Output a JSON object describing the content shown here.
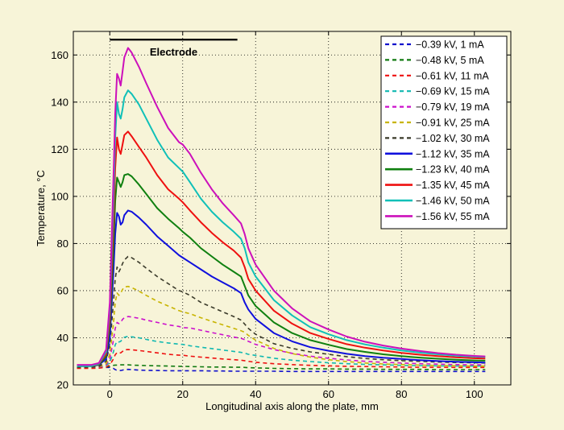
{
  "chart_data": {
    "type": "line",
    "title": "",
    "xlabel": "Longitudinal axis along the plate, mm",
    "ylabel": "Temperature, °C",
    "xlim": [
      -10,
      110
    ],
    "ylim": [
      20,
      170
    ],
    "xticks": [
      0,
      20,
      40,
      60,
      80,
      100
    ],
    "yticks": [
      20,
      40,
      60,
      80,
      100,
      120,
      140,
      160
    ],
    "grid": true,
    "legend_position": "top-right",
    "annotation": {
      "text": "Electrode",
      "x_start": 0,
      "x_end": 35,
      "y": 166.5
    },
    "x": [
      -9,
      -7,
      -5,
      -3,
      -1,
      0,
      1,
      1.5,
      2,
      2.5,
      3,
      3.5,
      4,
      5,
      6,
      8,
      10,
      13,
      16,
      19,
      20,
      22,
      25,
      28,
      31,
      34,
      36,
      37,
      38,
      40,
      45,
      50,
      55,
      60,
      65,
      70,
      75,
      80,
      85,
      90,
      95,
      100,
      103
    ],
    "series": [
      {
        "name": "−0.39 kV, 1 mA",
        "color": "#1010cc",
        "dash": "dashed",
        "values": [
          27.5,
          27.5,
          27.5,
          27.5,
          27.4,
          27.4,
          27.0,
          26.5,
          26.2,
          26.0,
          26.1,
          26.3,
          26.5,
          26.6,
          26.5,
          26.3,
          26.2,
          26.1,
          26.0,
          26.0,
          26.0,
          26.0,
          26.0,
          25.9,
          25.9,
          25.8,
          25.8,
          25.8,
          25.8,
          25.8,
          25.8,
          25.7,
          25.7,
          25.7,
          25.7,
          25.7,
          25.7,
          25.7,
          25.7,
          25.7,
          25.7,
          25.7,
          25.7
        ]
      },
      {
        "name": "−0.48 kV, 5 mA",
        "color": "#107a10",
        "dash": "dashed",
        "values": [
          27.5,
          27.5,
          27.5,
          27.5,
          27.6,
          27.9,
          28.3,
          28.4,
          28.4,
          28.4,
          28.5,
          28.5,
          28.5,
          28.5,
          28.4,
          28.3,
          28.2,
          28.1,
          28.0,
          27.9,
          27.9,
          27.8,
          27.7,
          27.6,
          27.6,
          27.5,
          27.5,
          27.4,
          27.3,
          27.2,
          27.0,
          26.9,
          26.8,
          26.8,
          26.7,
          26.7,
          26.6,
          26.6,
          26.6,
          26.5,
          26.5,
          26.5,
          26.5
        ]
      },
      {
        "name": "−0.61 kV, 11 mA",
        "color": "#ee1010",
        "dash": "dashed",
        "values": [
          27.0,
          27.0,
          27.0,
          27.1,
          27.5,
          28.5,
          31.0,
          32.8,
          33.7,
          33.5,
          33.6,
          34.2,
          34.9,
          35.0,
          34.9,
          34.6,
          34.2,
          33.6,
          33.0,
          32.6,
          32.6,
          32.2,
          31.8,
          31.4,
          31.0,
          30.7,
          30.5,
          30.3,
          30.0,
          29.6,
          29.0,
          28.6,
          28.3,
          28.1,
          27.9,
          27.8,
          27.7,
          27.6,
          27.5,
          27.5,
          27.4,
          27.4,
          27.4
        ]
      },
      {
        "name": "−0.69 kV, 15 mA",
        "color": "#10b8b0",
        "dash": "dashed",
        "values": [
          27.5,
          27.5,
          27.5,
          27.6,
          28.2,
          29.5,
          34.0,
          37.0,
          38.5,
          38.2,
          38.5,
          39.5,
          40.2,
          40.6,
          40.4,
          40.0,
          39.3,
          38.4,
          37.8,
          37.3,
          37.2,
          36.6,
          36.0,
          35.4,
          34.8,
          34.2,
          33.8,
          33.5,
          33.0,
          32.5,
          31.3,
          30.5,
          29.9,
          29.4,
          29.0,
          28.7,
          28.5,
          28.3,
          28.2,
          28.1,
          28.0,
          28.0,
          28.0
        ]
      },
      {
        "name": "−0.79 kV, 19 mA",
        "color": "#cc10cc",
        "dash": "dashed",
        "values": [
          27.5,
          27.5,
          27.5,
          27.6,
          28.5,
          31.0,
          39.0,
          44.0,
          46.5,
          46.0,
          46.5,
          47.8,
          48.5,
          49.0,
          48.8,
          48.3,
          47.5,
          46.5,
          45.5,
          44.8,
          44.3,
          44.2,
          43.2,
          42.2,
          41.3,
          40.3,
          39.8,
          39.2,
          38.5,
          37.2,
          35.0,
          33.4,
          32.2,
          31.3,
          30.6,
          30.0,
          29.6,
          29.3,
          29.0,
          28.8,
          28.6,
          28.5,
          28.5
        ]
      },
      {
        "name": "−0.91 kV, 25 mA",
        "color": "#c8b400",
        "dash": "dashed",
        "values": [
          27.5,
          27.5,
          27.5,
          27.7,
          29.0,
          33.0,
          46.0,
          55.0,
          59.0,
          58.0,
          59.0,
          60.5,
          61.5,
          61.8,
          61.3,
          59.8,
          58.0,
          55.5,
          53.5,
          51.5,
          51.0,
          50.2,
          48.5,
          47.0,
          45.5,
          44.0,
          43.0,
          42.3,
          41.0,
          39.0,
          35.5,
          33.3,
          31.8,
          30.7,
          29.9,
          29.3,
          28.9,
          28.6,
          28.4,
          28.2,
          28.1,
          28.0,
          28.0
        ]
      },
      {
        "name": "−1.02 kV, 30 mA",
        "color": "#3a3a2a",
        "dash": "dashed",
        "values": [
          27.5,
          27.5,
          27.5,
          27.8,
          30.0,
          37.0,
          55.0,
          65.0,
          70.0,
          68.0,
          69.5,
          71.5,
          73.0,
          74.5,
          74.0,
          72.0,
          69.5,
          66.0,
          63.0,
          60.0,
          59.5,
          58.0,
          55.0,
          53.0,
          51.0,
          49.0,
          47.5,
          45.8,
          44.0,
          41.5,
          37.5,
          35.5,
          34.0,
          33.0,
          32.0,
          31.2,
          30.7,
          30.3,
          30.0,
          29.7,
          29.5,
          29.4,
          29.3
        ]
      },
      {
        "name": "−1.12 kV, 35 mA",
        "color": "#1010dd",
        "dash": "solid",
        "values": [
          28.0,
          28.0,
          28.0,
          28.5,
          31.0,
          40.0,
          68.0,
          84.0,
          93.0,
          91.5,
          88.0,
          89.0,
          92.0,
          94.0,
          93.5,
          91.0,
          88.0,
          83.0,
          79.0,
          75.0,
          74.0,
          72.0,
          69.0,
          66.0,
          63.5,
          61.0,
          59.0,
          55.0,
          52.0,
          48.0,
          42.0,
          38.5,
          36.0,
          34.5,
          33.2,
          32.2,
          31.5,
          31.0,
          30.5,
          30.1,
          29.8,
          29.6,
          29.5
        ]
      },
      {
        "name": "−1.23 kV, 40 mA",
        "color": "#108010",
        "dash": "solid",
        "values": [
          28.0,
          28.0,
          28.0,
          28.6,
          32.0,
          45.0,
          78.0,
          98.0,
          108.0,
          106.0,
          104.0,
          106.0,
          109.0,
          109.5,
          108.5,
          105.0,
          101.0,
          95.0,
          90.5,
          86.5,
          85.0,
          82.5,
          78.0,
          74.5,
          71.0,
          68.0,
          66.0,
          62.0,
          58.0,
          53.5,
          46.5,
          42.0,
          39.0,
          37.0,
          35.2,
          34.0,
          33.0,
          32.2,
          31.6,
          31.1,
          30.7,
          30.4,
          30.3
        ]
      },
      {
        "name": "−1.35 kV, 45 mA",
        "color": "#ee1010",
        "dash": "solid",
        "values": [
          28.0,
          28.0,
          28.0,
          28.8,
          33.0,
          48.0,
          88.0,
          112.0,
          125.0,
          120.0,
          118.0,
          122.0,
          126.0,
          127.5,
          125.5,
          121.0,
          116.5,
          109.0,
          103.0,
          99.0,
          97.5,
          94.0,
          89.0,
          84.5,
          80.5,
          77.0,
          74.0,
          70.0,
          65.0,
          60.0,
          51.5,
          46.0,
          42.0,
          39.5,
          37.3,
          35.8,
          34.6,
          33.6,
          32.8,
          32.2,
          31.7,
          31.3,
          31.2
        ]
      },
      {
        "name": "−1.46 kV, 50 mA",
        "color": "#10c0b8",
        "dash": "solid",
        "values": [
          28.0,
          28.0,
          28.0,
          29.0,
          34.0,
          52.0,
          98.0,
          125.0,
          140.0,
          135.0,
          133.0,
          137.0,
          142.0,
          145.0,
          143.5,
          139.0,
          133.0,
          124.0,
          116.5,
          112.0,
          110.5,
          106.0,
          99.0,
          93.5,
          89.0,
          85.0,
          82.0,
          78.0,
          72.0,
          66.0,
          56.0,
          49.5,
          44.5,
          41.5,
          39.0,
          37.2,
          35.8,
          34.6,
          33.7,
          33.0,
          32.4,
          32.0,
          31.9
        ]
      },
      {
        "name": "−1.56 kV, 55 mA",
        "color": "#cc10bb",
        "dash": "solid",
        "values": [
          28.5,
          28.5,
          28.5,
          29.3,
          35.0,
          55.0,
          108.0,
          135.0,
          152.0,
          150.0,
          147.0,
          153.0,
          159.0,
          163.0,
          161.0,
          155.0,
          148.0,
          138.0,
          129.0,
          123.0,
          122.0,
          118.0,
          110.0,
          103.0,
          97.0,
          92.0,
          88.5,
          84.0,
          78.0,
          71.0,
          60.0,
          52.5,
          47.0,
          43.5,
          40.5,
          38.3,
          36.7,
          35.4,
          34.4,
          33.5,
          32.8,
          32.3,
          32.1
        ]
      }
    ]
  }
}
